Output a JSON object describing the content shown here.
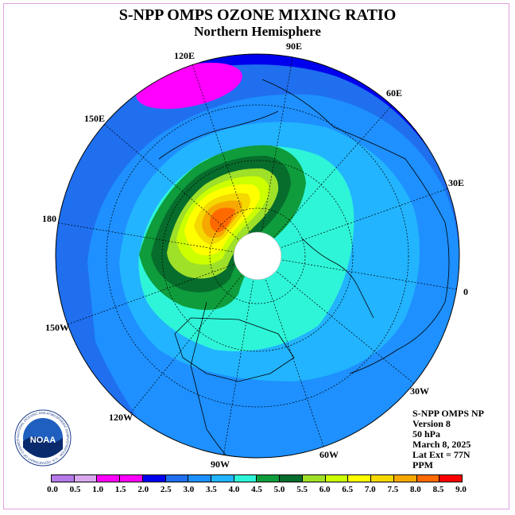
{
  "header": {
    "title": "S-NPP OMPS OZONE MIXING RATIO",
    "subtitle": "Northern Hemisphere"
  },
  "longitude_labels": [
    "120E",
    "90E",
    "60E",
    "150E",
    "30E",
    "180",
    "0",
    "150W",
    "30W",
    "120W",
    "60W",
    "90W"
  ],
  "info": {
    "instrument": "S-NPP OMPS NP",
    "version": "Version 8",
    "level": "50 hPa",
    "date": "March 8, 2025",
    "lat_ext": "Lat Ext = 77N",
    "units": "PPM"
  },
  "logo": {
    "text": "NOAA",
    "ring_text": "NATIONAL OCEANIC AND ATMOSPHERIC ADMINISTRATION · U.S. DEPARTMENT OF COMMERCE"
  },
  "colorbar": {
    "ticks": [
      "0.0",
      "0.5",
      "1.0",
      "1.5",
      "2.0",
      "2.5",
      "3.0",
      "3.5",
      "4.0",
      "4.5",
      "5.0",
      "5.5",
      "6.0",
      "6.5",
      "7.0",
      "7.5",
      "8.0",
      "8.5",
      "9.0"
    ],
    "colors": [
      "#b57aea",
      "#d9a8ef",
      "#ff00ff",
      "#ff00ff",
      "#0000ee",
      "#1f6fef",
      "#1e90ff",
      "#22b4ff",
      "#2ef5d8",
      "#0f9c3c",
      "#076d2c",
      "#9fe028",
      "#ccff00",
      "#ffff00",
      "#f5d800",
      "#f7a800",
      "#ff6a00",
      "#ff0000",
      "#8b5a3c"
    ]
  }
}
